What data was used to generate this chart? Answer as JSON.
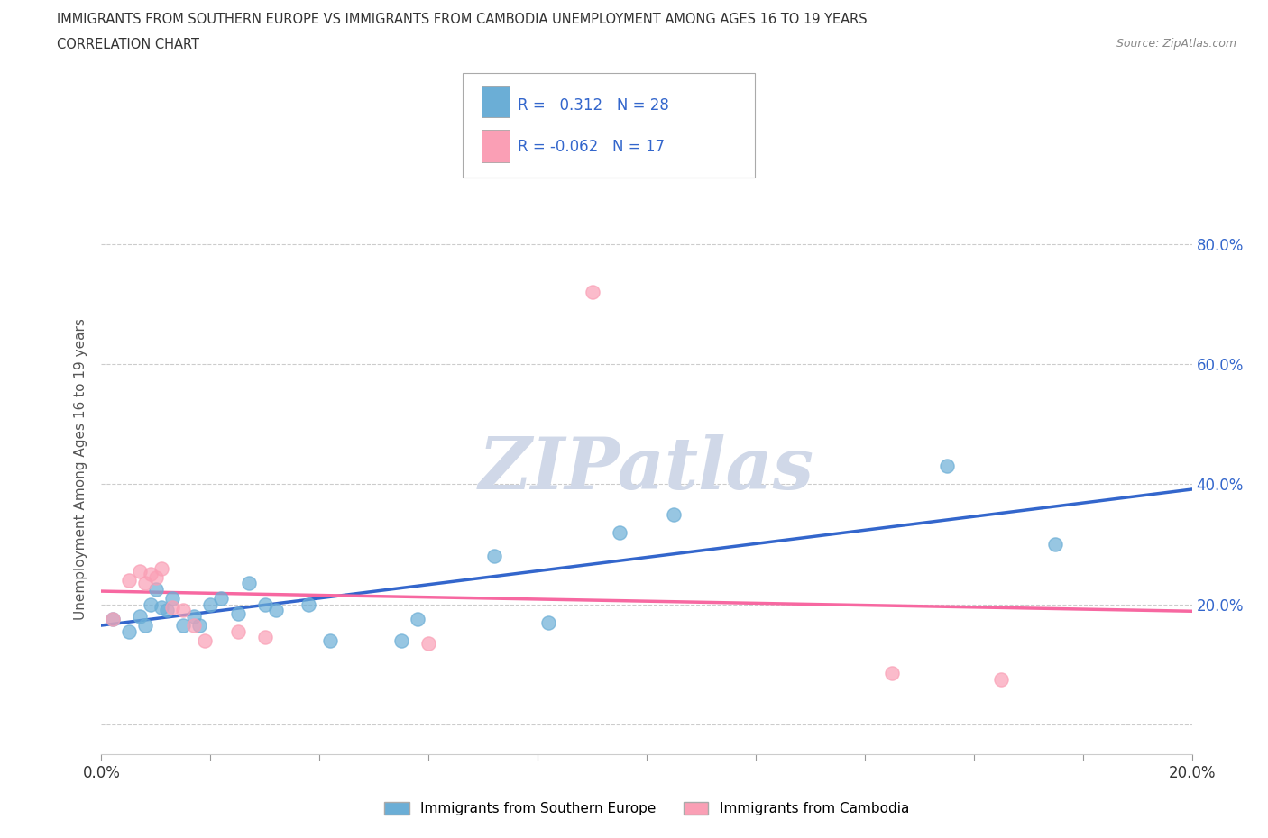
{
  "title_line1": "IMMIGRANTS FROM SOUTHERN EUROPE VS IMMIGRANTS FROM CAMBODIA UNEMPLOYMENT AMONG AGES 16 TO 19 YEARS",
  "title_line2": "CORRELATION CHART",
  "source_text": "Source: ZipAtlas.com",
  "ylabel": "Unemployment Among Ages 16 to 19 years",
  "xlim": [
    0.0,
    0.2
  ],
  "ylim": [
    -0.05,
    0.9
  ],
  "ytick_positions": [
    0.0,
    0.2,
    0.4,
    0.6,
    0.8
  ],
  "ytick_labels": [
    "",
    "20.0%",
    "40.0%",
    "60.0%",
    "80.0%"
  ],
  "xtick_positions": [
    0.0,
    0.02,
    0.04,
    0.06,
    0.08,
    0.1,
    0.12,
    0.14,
    0.16,
    0.18,
    0.2
  ],
  "grid_color": "#cccccc",
  "background_color": "#ffffff",
  "watermark_text": "ZIPatlas",
  "watermark_color": "#d0d8e8",
  "legend_R1": "0.312",
  "legend_N1": "28",
  "legend_R2": "-0.062",
  "legend_N2": "17",
  "blue_color": "#6baed6",
  "pink_color": "#fa9fb5",
  "blue_line_color": "#3366cc",
  "pink_line_color": "#f768a1",
  "label1": "Immigrants from Southern Europe",
  "label2": "Immigrants from Cambodia",
  "blue_scatter_x": [
    0.002,
    0.005,
    0.007,
    0.008,
    0.009,
    0.01,
    0.011,
    0.012,
    0.013,
    0.015,
    0.017,
    0.018,
    0.02,
    0.022,
    0.025,
    0.027,
    0.03,
    0.032,
    0.038,
    0.042,
    0.055,
    0.058,
    0.072,
    0.082,
    0.095,
    0.105,
    0.155,
    0.175
  ],
  "blue_scatter_y": [
    0.175,
    0.155,
    0.18,
    0.165,
    0.2,
    0.225,
    0.195,
    0.19,
    0.21,
    0.165,
    0.18,
    0.165,
    0.2,
    0.21,
    0.185,
    0.235,
    0.2,
    0.19,
    0.2,
    0.14,
    0.14,
    0.175,
    0.28,
    0.17,
    0.32,
    0.35,
    0.43,
    0.3
  ],
  "pink_scatter_x": [
    0.002,
    0.005,
    0.007,
    0.008,
    0.009,
    0.01,
    0.011,
    0.013,
    0.015,
    0.017,
    0.019,
    0.025,
    0.03,
    0.06,
    0.09,
    0.145,
    0.165
  ],
  "pink_scatter_y": [
    0.175,
    0.24,
    0.255,
    0.235,
    0.25,
    0.245,
    0.26,
    0.195,
    0.19,
    0.165,
    0.14,
    0.155,
    0.145,
    0.135,
    0.72,
    0.085,
    0.075
  ]
}
